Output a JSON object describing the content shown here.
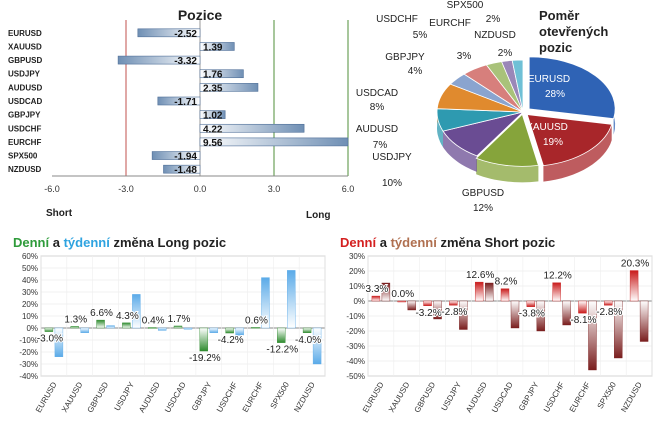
{
  "chart_data": [
    {
      "type": "bar",
      "orientation": "horizontal",
      "title": "Pozice",
      "categories": [
        "EURUSD",
        "XAUUSD",
        "GBPUSD",
        "USDJPY",
        "AUDUSD",
        "USDCAD",
        "GBPJPY",
        "USDCHF",
        "EURCHF",
        "SPX500",
        "NZDUSD"
      ],
      "values": [
        -2.52,
        1.39,
        -3.32,
        1.76,
        2.35,
        -1.71,
        1.02,
        4.22,
        9.56,
        -1.94,
        -1.48
      ],
      "value_labels": [
        "-2.52",
        "1.39",
        "-3.32",
        "1.76",
        "2.35",
        "-1.71",
        "1.02",
        "4.22",
        "9.56",
        "-1.94",
        "-1.48"
      ],
      "xlim": [
        -6,
        6
      ],
      "xticks": [
        "-6.0",
        "-3.0",
        "0.0",
        "3.0",
        "6.0"
      ],
      "left_label": "Short",
      "right_label": "Long",
      "colors": {
        "bar": "#6f8fb4",
        "short_line": "#c0504d",
        "long_line": "#4f8f3a"
      }
    },
    {
      "type": "pie",
      "title": "Poměr otevřených pozic",
      "title_lines": [
        "Poměr",
        "otevřených",
        "pozic"
      ],
      "slices": [
        {
          "name": "EURUSD",
          "value": 28,
          "label": "28%",
          "color": "#2f63b5"
        },
        {
          "name": "XAUUSD",
          "value": 19,
          "label": "19%",
          "color": "#a8262a"
        },
        {
          "name": "GBPUSD",
          "value": 12,
          "label": "12%",
          "color": "#86a43b"
        },
        {
          "name": "USDJPY",
          "value": 10,
          "label": "10%",
          "color": "#6a4c93"
        },
        {
          "name": "AUDUSD",
          "value": 7,
          "label": "7%",
          "color": "#2e9ab0"
        },
        {
          "name": "USDCAD",
          "value": 8,
          "label": "8%",
          "color": "#e08a2e"
        },
        {
          "name": "GBPJPY",
          "value": 4,
          "label": "4%",
          "color": "#8aa4cf"
        },
        {
          "name": "USDCHF",
          "value": 5,
          "label": "5%",
          "color": "#d77f7c"
        },
        {
          "name": "EURCHF",
          "value": 3,
          "label": "3%",
          "color": "#a9c27a"
        },
        {
          "name": "SPX500",
          "value": 2,
          "label": "2%",
          "color": "#9a87b8"
        },
        {
          "name": "NZDUSD",
          "value": 2,
          "label": "2%",
          "color": "#6fc0d6"
        }
      ]
    },
    {
      "type": "bar",
      "title_parts": [
        {
          "text": "Denní",
          "color": "#2e9b3a"
        },
        {
          "text": " a ",
          "color": "#222222"
        },
        {
          "text": "týdenní",
          "color": "#2ea3e0"
        },
        {
          "text": " změna Long pozic",
          "color": "#222222"
        }
      ],
      "categories": [
        "EURUSD",
        "XAUUSD",
        "GBPUSD",
        "USDJPY",
        "AUDUSD",
        "USDCAD",
        "GBPJPY",
        "USDCHF",
        "EURCHF",
        "SPX500",
        "NZDUSD"
      ],
      "series": [
        {
          "name": "Denní",
          "color": "#2e8b2e",
          "values": [
            -3.0,
            1.3,
            6.6,
            4.3,
            0.4,
            1.7,
            -19.2,
            -4.2,
            0.6,
            -12.2,
            -4.0
          ]
        },
        {
          "name": "týdenní",
          "color": "#5aaae8",
          "values": [
            -24,
            -4,
            2,
            28,
            -2,
            -1,
            -4,
            -6,
            42,
            48,
            -30
          ]
        }
      ],
      "value_labels": [
        "-3.0%",
        "1.3%",
        "6.6%",
        "4.3%",
        "0.4%",
        "1.7%",
        "-19.2%",
        "-4.2%",
        "0.6%",
        "-12.2%",
        "-4.0%"
      ],
      "ylim": [
        -40,
        60
      ],
      "yticks": [
        "-40%",
        "-30%",
        "-20%",
        "-10%",
        "0%",
        "10%",
        "20%",
        "30%",
        "40%",
        "50%",
        "60%"
      ]
    },
    {
      "type": "bar",
      "title_parts": [
        {
          "text": "Denní",
          "color": "#d42020"
        },
        {
          "text": " a ",
          "color": "#222222"
        },
        {
          "text": "týdenní",
          "color": "#b07050"
        },
        {
          "text": " změna Short pozic",
          "color": "#222222"
        }
      ],
      "categories": [
        "EURUSD",
        "XAUUSD",
        "GBPUSD",
        "USDJPY",
        "AUDUSD",
        "USDCAD",
        "GBPJPY",
        "USDCHF",
        "EURCHF",
        "SPX500",
        "NZDUSD"
      ],
      "series": [
        {
          "name": "Denní",
          "color": "#c91a1a",
          "values": [
            3.3,
            0.0,
            -3.2,
            -2.8,
            12.6,
            8.2,
            -3.8,
            12.2,
            -8.1,
            -2.8,
            20.3
          ]
        },
        {
          "name": "týdenní",
          "color": "#7a1e1e",
          "values": [
            12,
            -6,
            -12,
            -19,
            12,
            -18,
            -20,
            -16,
            -46,
            -38,
            -27
          ]
        }
      ],
      "value_labels": [
        "3.3%",
        "0.0%",
        "-3.2%",
        "-2.8%",
        "12.6%",
        "8.2%",
        "-3.8%",
        "12.2%",
        "-8.1%",
        "-2.8%",
        "20.3%"
      ],
      "ylim": [
        -50,
        30
      ],
      "yticks": [
        "-50%",
        "-40%",
        "-30%",
        "-20%",
        "-10%",
        "0%",
        "10%",
        "20%",
        "30%"
      ]
    }
  ]
}
